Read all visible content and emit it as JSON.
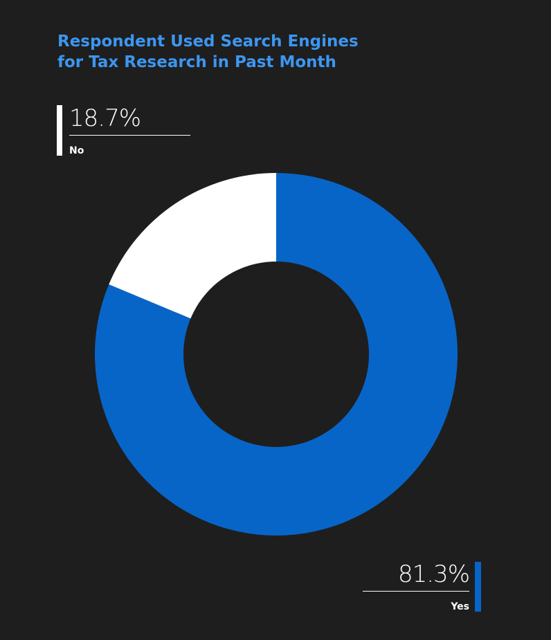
{
  "chart_data": {
    "type": "pie",
    "title_lines": [
      "Respondent Used Search Engines",
      "for Tax Research in Past Month"
    ],
    "categories": [
      "Yes",
      "No"
    ],
    "values": [
      81.3,
      18.7
    ],
    "value_labels": [
      "81.3%",
      "18.7%"
    ],
    "colors": [
      "#0765c8",
      "#ffffff"
    ],
    "donut": true
  },
  "colors": {
    "background": "#1e1e1e",
    "title": "#3d96f0"
  }
}
